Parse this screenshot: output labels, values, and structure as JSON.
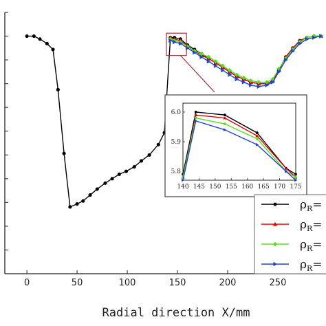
{
  "chart_data": {
    "type": "line",
    "title": "",
    "xlabel": "Radial direction X/mm",
    "ylabel": "",
    "xlim": [
      -22,
      298
    ],
    "ylim": [
      4.4,
      6.16
    ],
    "xticks": [
      0,
      50,
      100,
      150,
      200,
      250
    ],
    "x_tick_labels": [
      "0",
      "50",
      "100",
      "150",
      "200",
      "250"
    ],
    "grid": false,
    "legend_placement": "bottom-right",
    "legend_entries": [
      {
        "prefix": "ρ",
        "sub": "R",
        "suffix": "="
      },
      {
        "prefix": "ρ",
        "sub": "R",
        "suffix": "="
      },
      {
        "prefix": "ρ",
        "sub": "R",
        "suffix": "="
      },
      {
        "prefix": "ρ",
        "sub": "R",
        "suffix": "="
      }
    ],
    "series": [
      {
        "color": "#000000",
        "marker": "circle",
        "x": [
          0,
          7,
          13,
          20,
          26,
          31,
          37,
          43,
          50,
          56,
          63,
          70,
          78,
          85,
          92,
          99,
          107,
          114,
          122,
          131,
          137,
          143,
          147,
          153,
          160,
          167,
          174,
          181,
          188,
          195,
          202,
          209,
          216,
          223,
          231,
          239,
          245,
          251,
          258,
          265,
          272,
          279,
          286,
          293
        ],
        "y": [
          6.0,
          6.0,
          5.98,
          5.95,
          5.91,
          5.64,
          5.21,
          4.85,
          4.87,
          4.89,
          4.93,
          4.97,
          5.01,
          5.04,
          5.07,
          5.09,
          5.12,
          5.16,
          5.2,
          5.27,
          5.35,
          5.99,
          5.99,
          5.98,
          5.94,
          5.91,
          5.88,
          5.85,
          5.82,
          5.79,
          5.76,
          5.73,
          5.71,
          5.69,
          5.68,
          5.68,
          5.7,
          5.77,
          5.86,
          5.92,
          5.97,
          5.99,
          6.0,
          6.0
        ]
      },
      {
        "color": "#dd0000",
        "marker": "triangle",
        "x": [
          143,
          147,
          153,
          160,
          167,
          174,
          181,
          188,
          195,
          202,
          209,
          216,
          223,
          231,
          239,
          245,
          251,
          258,
          265,
          272,
          279,
          286,
          293
        ],
        "y": [
          5.99,
          5.98,
          5.97,
          5.93,
          5.9,
          5.87,
          5.85,
          5.82,
          5.79,
          5.76,
          5.73,
          5.71,
          5.69,
          5.68,
          5.68,
          5.7,
          5.77,
          5.86,
          5.92,
          5.97,
          5.99,
          6.0,
          6.0
        ]
      },
      {
        "color": "#55dd22",
        "marker": "diamond",
        "x": [
          143,
          147,
          153,
          160,
          167,
          174,
          181,
          188,
          195,
          202,
          209,
          216,
          223,
          231,
          239,
          245,
          251,
          258,
          265,
          272,
          279,
          286,
          293
        ],
        "y": [
          5.98,
          5.97,
          5.96,
          5.93,
          5.9,
          5.88,
          5.86,
          5.83,
          5.8,
          5.77,
          5.74,
          5.72,
          5.7,
          5.69,
          5.69,
          5.71,
          5.78,
          5.85,
          5.91,
          5.96,
          5.99,
          6.0,
          6.0
        ]
      },
      {
        "color": "#2244cc",
        "marker": "triangle-right",
        "x": [
          143,
          147,
          153,
          160,
          167,
          174,
          181,
          188,
          195,
          202,
          209,
          216,
          223,
          231,
          239,
          245,
          251,
          258,
          265,
          272,
          279,
          286,
          293
        ],
        "y": [
          5.97,
          5.96,
          5.95,
          5.92,
          5.89,
          5.86,
          5.83,
          5.8,
          5.77,
          5.74,
          5.71,
          5.69,
          5.67,
          5.66,
          5.67,
          5.69,
          5.76,
          5.84,
          5.9,
          5.95,
          5.98,
          5.99,
          6.0
        ]
      }
    ],
    "inset": {
      "xlim": [
        140,
        175
      ],
      "ylim": [
        5.77,
        6.03
      ],
      "xticks": [
        140,
        145,
        150,
        155,
        160,
        165,
        170,
        175
      ],
      "x_tick_labels": [
        "140",
        "145",
        "150",
        "155",
        "160",
        "165",
        "170",
        "175"
      ],
      "yticks": [
        5.8,
        5.9,
        6.0
      ],
      "y_tick_labels": [
        "5.8",
        "5.9",
        "6.0"
      ],
      "zoom_box": {
        "xlim": [
          139,
          159
        ],
        "ylim": [
          5.87,
          6.02
        ]
      },
      "series": [
        {
          "color": "#000000",
          "marker": "circle",
          "x": [
            140,
            144,
            153,
            163,
            172,
            175
          ],
          "y": [
            5.79,
            6.0,
            5.99,
            5.93,
            5.81,
            5.79
          ]
        },
        {
          "color": "#dd0000",
          "marker": "triangle",
          "x": [
            140,
            144,
            153,
            163,
            172,
            175
          ],
          "y": [
            5.78,
            5.99,
            5.98,
            5.92,
            5.81,
            5.78
          ]
        },
        {
          "color": "#55dd22",
          "marker": "diamond",
          "x": [
            140,
            144,
            153,
            163,
            172,
            175
          ],
          "y": [
            5.78,
            5.98,
            5.96,
            5.91,
            5.8,
            5.78
          ]
        },
        {
          "color": "#2244cc",
          "marker": "triangle-right",
          "x": [
            140,
            144,
            153,
            163,
            172,
            175
          ],
          "y": [
            5.77,
            5.97,
            5.94,
            5.89,
            5.8,
            5.77
          ]
        }
      ]
    }
  }
}
